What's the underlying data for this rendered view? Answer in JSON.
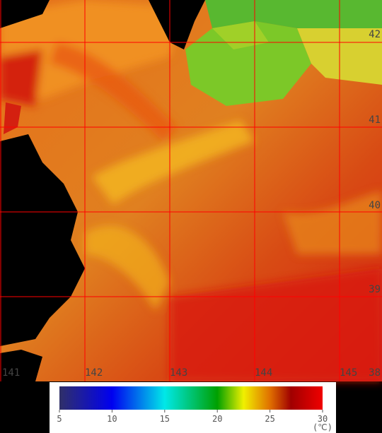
{
  "map": {
    "longitude_labels": [
      "141",
      "142",
      "143",
      "144",
      "145"
    ],
    "latitude_labels": [
      "42",
      "41",
      "40",
      "39",
      "38"
    ]
  },
  "colorbar": {
    "range": [
      5,
      30
    ],
    "ticks": [
      5,
      10,
      15,
      20,
      25,
      30
    ],
    "unit": "(℃)"
  }
}
